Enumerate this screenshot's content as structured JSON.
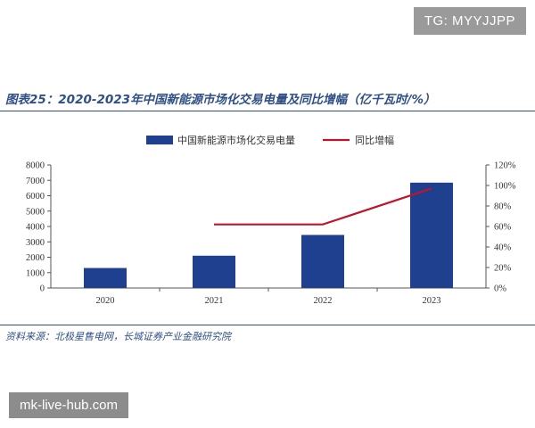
{
  "watermark_top": "TG: MYYJJPP",
  "watermark_bottom": "mk-live-hub.com",
  "figure_title": "图表25：2020-2023年中国新能源市场化交易电量及同比增幅（亿千瓦时/%）",
  "source": "资料来源：北极星售电网，长城证券产业金融研究院",
  "colors": {
    "bar": "#1f3f8f",
    "line": "#c0142c",
    "text": "#2f4f86"
  },
  "chart_data": {
    "type": "bar",
    "categories": [
      "2020",
      "2021",
      "2022",
      "2023"
    ],
    "series": [
      {
        "name": "中国新能源市场化交易电量",
        "type": "bar",
        "axis": "left",
        "values": [
          1300,
          2100,
          3450,
          6850
        ]
      },
      {
        "name": "同比增幅",
        "type": "line",
        "axis": "right",
        "values": [
          null,
          62,
          62,
          97
        ]
      }
    ],
    "y_left": {
      "min": 0,
      "max": 8000,
      "step": 1000,
      "ticks": [
        "0",
        "1000",
        "2000",
        "3000",
        "4000",
        "5000",
        "6000",
        "7000",
        "8000"
      ]
    },
    "y_right": {
      "min": 0,
      "max": 120,
      "step": 20,
      "ticks": [
        "0%",
        "20%",
        "40%",
        "60%",
        "80%",
        "100%",
        "120%"
      ]
    },
    "legend_placement": "top-center",
    "grid": false
  }
}
